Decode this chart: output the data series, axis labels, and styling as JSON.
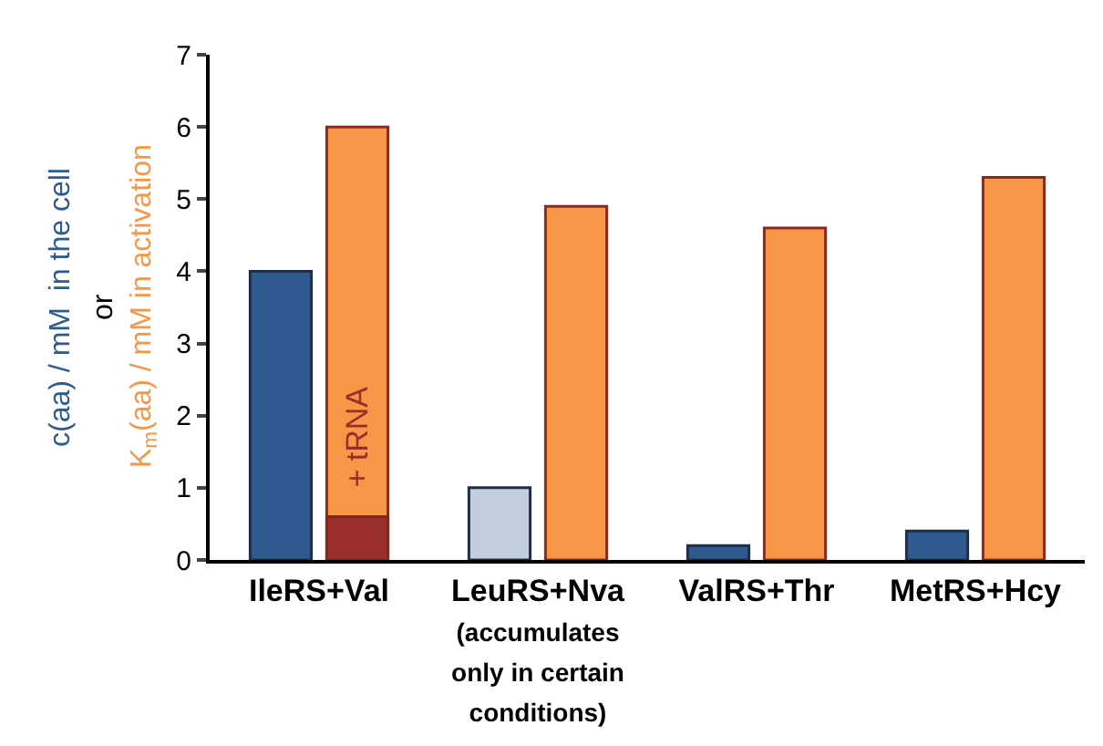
{
  "chart_data": {
    "type": "bar",
    "categories": [
      "IleRS+Val",
      "LeuRS+Nva\n(accumulates\nonly in certain\nconditions)",
      "ValRS+Thr",
      "MetRS+Hcy"
    ],
    "ylabel": "c(aa) / mM  in the cell",
    "series": [
      {
        "color": "#2f5a8f",
        "colors": [
          "#2f5a8f",
          "#c3cedc",
          "#2f5a8f",
          "#2f5a8f"
        ],
        "values": [
          4.0,
          1.0,
          0.2,
          0.4
        ]
      },
      {
        "color": "#f79646",
        "values": [
          6.0,
          4.9,
          4.6,
          5.3
        ]
      },
      {
        "name": "+ tRNA",
        "color": "#9a2e2a",
        "values": [
          0.6,
          null,
          null,
          null
        ]
      }
    ],
    "annotations": [
      "or",
      "K$_{m}$(aa) / mM in activation"
    ],
    "ylim": [
      0,
      7
    ],
    "yticks": [
      0,
      1,
      2,
      3,
      4,
      5,
      6,
      7
    ]
  }
}
